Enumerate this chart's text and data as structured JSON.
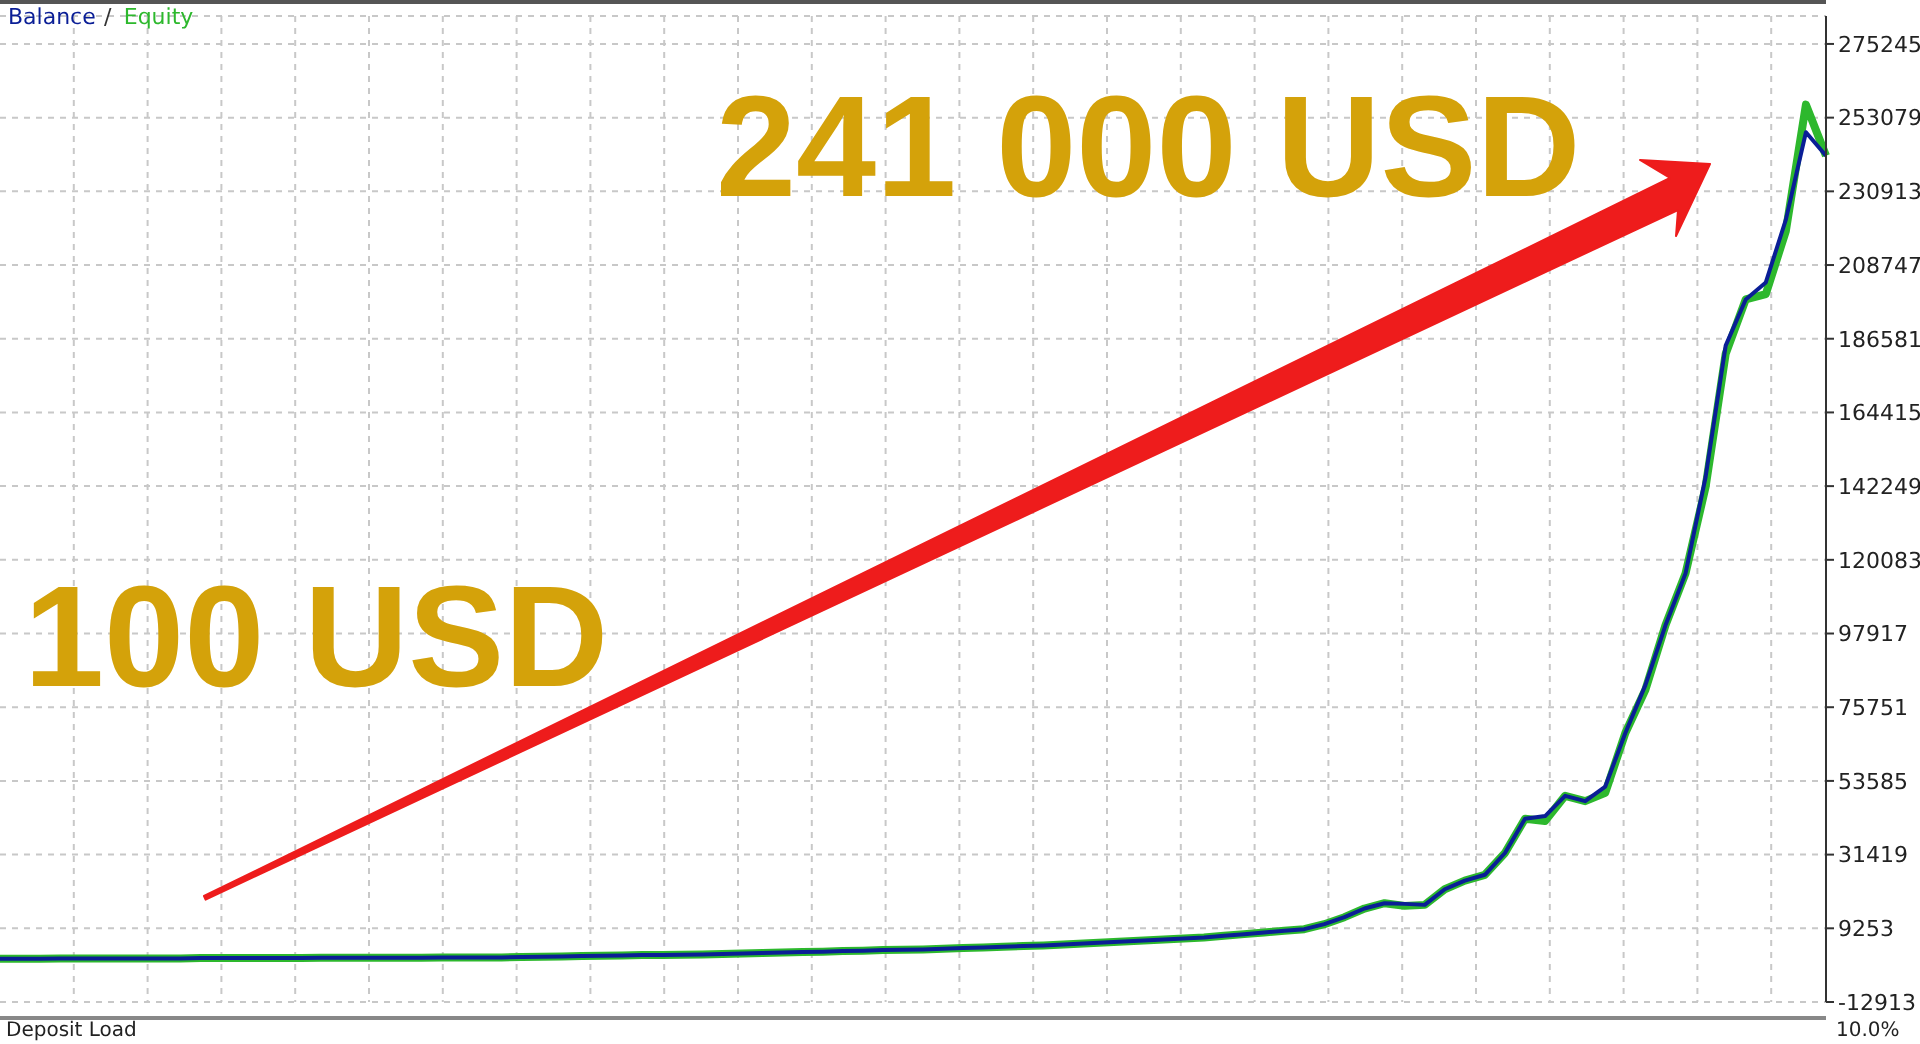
{
  "chart_data": {
    "type": "line",
    "legend": "top left",
    "grid": true,
    "tick_labels": "y",
    "marker": "none",
    "line_style": "solid",
    "annotations": [
      "241 000 USD",
      "100 USD",
      "Deposit Load",
      "10.0%",
      "/"
    ],
    "categories": [
      null,
      null,
      null,
      null,
      null,
      null,
      null,
      null,
      null,
      null,
      null,
      null,
      null,
      null,
      null,
      null,
      null,
      null,
      null,
      null,
      null,
      null,
      null,
      null,
      null,
      null,
      null,
      null,
      null,
      null,
      null,
      null,
      null,
      null,
      null,
      null,
      null,
      null,
      null,
      null,
      null,
      null,
      null,
      null,
      null,
      null,
      null,
      null,
      null,
      null,
      null,
      null,
      null,
      null,
      null,
      null,
      null,
      null,
      null,
      null,
      null,
      null,
      null,
      null,
      null,
      null,
      null,
      null,
      null,
      null,
      null,
      null,
      null,
      null,
      null,
      null,
      null,
      null,
      null,
      null,
      null,
      null,
      null,
      null,
      null,
      null,
      null,
      null,
      null,
      null,
      null,
      null
    ],
    "ylim": [
      -12913,
      283650
    ],
    "yticks": [
      -12913,
      9253,
      31419,
      53585,
      75751,
      97917,
      120083,
      142249,
      164415,
      186581,
      208747,
      230913,
      253079,
      275245
    ],
    "series": [
      {
        "name": "Equity",
        "color": "#2db82d",
        "values": [
          100,
          100,
          100,
          200,
          200,
          200,
          200,
          200,
          200,
          200,
          300,
          300,
          300,
          300,
          300,
          300,
          400,
          400,
          400,
          400,
          400,
          400,
          500,
          500,
          500,
          500,
          600,
          700,
          800,
          900,
          1000,
          1100,
          1200,
          1200,
          1300,
          1400,
          1500,
          1700,
          1800,
          2000,
          2100,
          2200,
          2400,
          2500,
          2700,
          2800,
          2900,
          3100,
          3300,
          3500,
          3700,
          3900,
          4100,
          4400,
          4700,
          5000,
          5300,
          5600,
          5900,
          6200,
          6500,
          7000,
          7500,
          8000,
          8500,
          9000,
          10500,
          12600,
          15200,
          16800,
          16000,
          16300,
          21000,
          23600,
          25350,
          31900,
          42200,
          41500,
          49100,
          47500,
          50000,
          68000,
          81000,
          100400,
          116000,
          142000,
          182000,
          198400,
          200000,
          219000,
          257000,
          241600
        ]
      },
      {
        "name": "Balance",
        "color": "#0a1e96",
        "values": [
          100,
          100,
          100,
          200,
          200,
          200,
          200,
          200,
          200,
          200,
          300,
          300,
          300,
          300,
          300,
          300,
          400,
          400,
          400,
          400,
          400,
          400,
          500,
          500,
          500,
          500,
          600,
          700,
          800,
          900,
          1000,
          1100,
          1200,
          1200,
          1300,
          1400,
          1500,
          1700,
          1800,
          2000,
          2100,
          2200,
          2400,
          2500,
          2700,
          2800,
          2900,
          3100,
          3300,
          3500,
          3700,
          3900,
          4100,
          4400,
          4700,
          5000,
          5300,
          5600,
          5900,
          6200,
          6500,
          7000,
          7500,
          8000,
          8500,
          9000,
          10500,
          12600,
          15200,
          16800,
          16600,
          16300,
          21000,
          23600,
          25350,
          31900,
          42200,
          43000,
          49100,
          47500,
          51900,
          68000,
          82400,
          100400,
          116000,
          145000,
          184500,
          198400,
          203500,
          222400,
          248700,
          241600
        ]
      }
    ]
  }
}
